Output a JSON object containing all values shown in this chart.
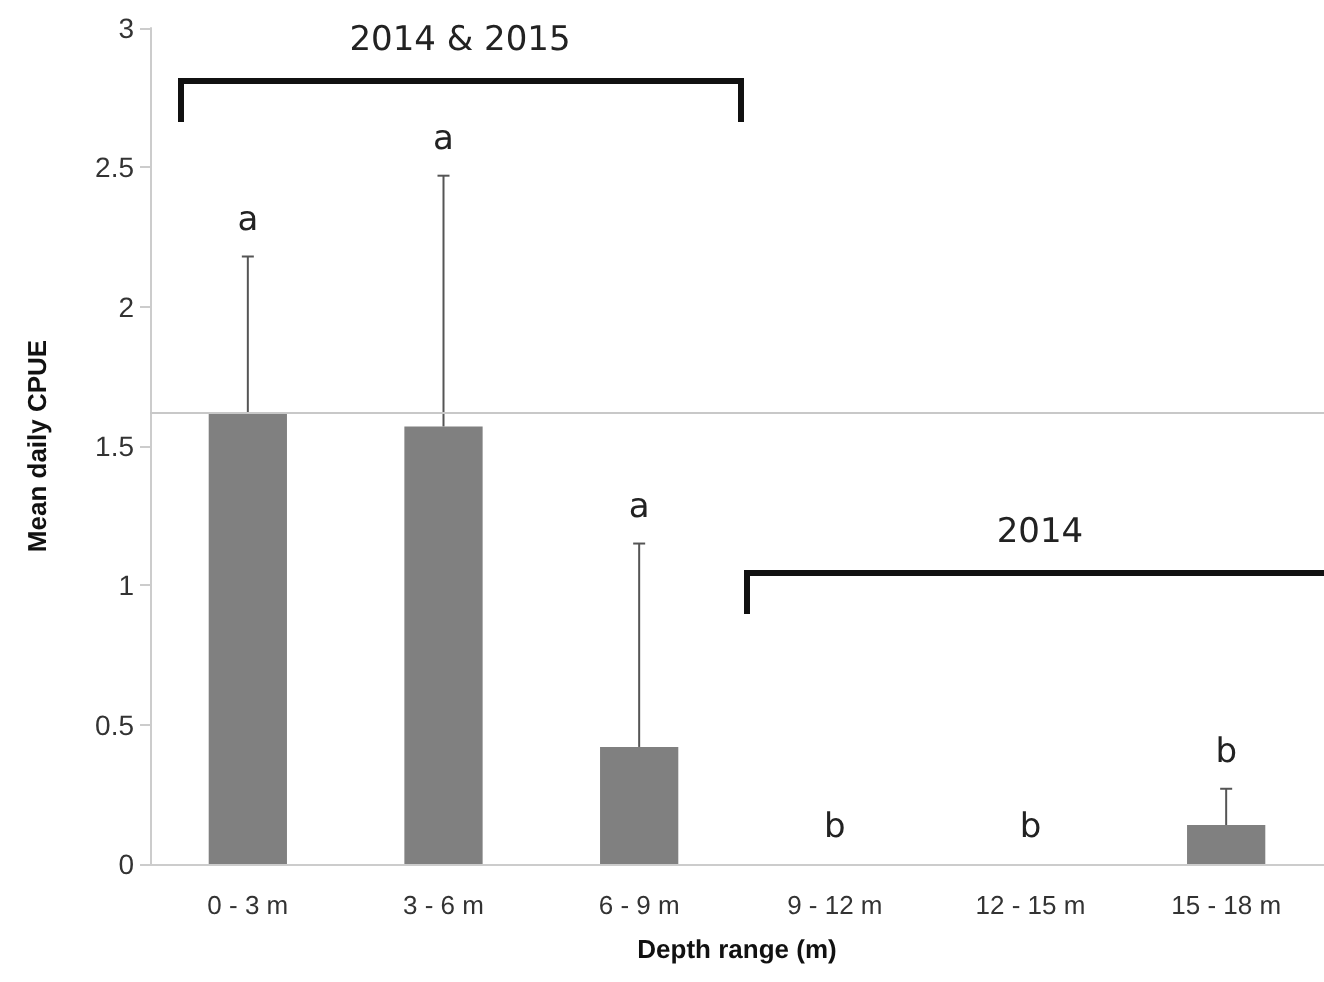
{
  "chart_data": {
    "type": "bar",
    "xlabel": "Depth range (m)",
    "ylabel": "Mean daily CPUE",
    "categories": [
      "0 - 3 m",
      "3 - 6 m",
      "6 - 9 m",
      "9 - 12 m",
      "12 - 15 m",
      "15 - 18 m"
    ],
    "values": [
      1.62,
      1.57,
      0.42,
      0,
      0,
      0.14
    ],
    "color": "#808080",
    "errors": [
      [
        1.62,
        2.18
      ],
      [
        1.57,
        2.47
      ],
      [
        0.42,
        1.15
      ],
      null,
      null,
      [
        0.14,
        0.27
      ]
    ],
    "ylim": [
      0,
      3
    ],
    "yticks": [
      0,
      0.5,
      1,
      1.5,
      2,
      2.5,
      3
    ],
    "grid": false,
    "ref_lines": [
      {
        "axis": "y",
        "value": 1.62,
        "color": "#c8c8c8"
      }
    ],
    "annotations": [
      "a",
      "a",
      "a",
      "b",
      "b",
      "b",
      "2014 & 2015",
      "2014"
    ]
  }
}
